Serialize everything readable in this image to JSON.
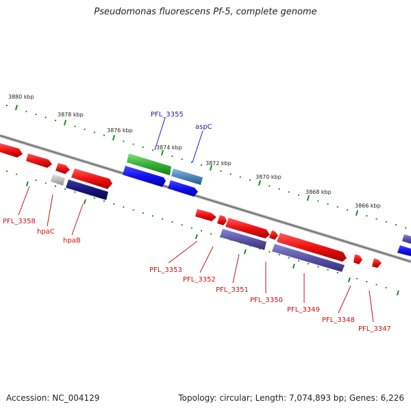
{
  "title": "Pseudomonas fluorescens Pf-5, complete genome",
  "footer": {
    "accession": "Accession: NC_004129",
    "summary": "Topology: circular; Length: 7,074,893 bp; Genes: 6,226"
  },
  "colors": {
    "forward_gene": "#ee1111",
    "reverse_gene": "#1111ee",
    "backbone": "#888888",
    "tick": "#1e8a1e",
    "label_red": "#c81010",
    "label_blue": "#1a1ab4"
  },
  "scale_labels": [
    "3880 kbp",
    "3878 kbp",
    "3876 kbp",
    "3874 kbp",
    "3872 kbp",
    "3870 kbp",
    "3868 kbp",
    "3866 kbp"
  ],
  "gene_labels": [
    "PFL_3358",
    "hpaC",
    "hpaB",
    "PFL_3355",
    "aspC",
    "PFL_3353",
    "PFL_3352",
    "PFL_3351",
    "PFL_3350",
    "PFL_3349",
    "PFL_3348",
    "PFL_3347"
  ]
}
